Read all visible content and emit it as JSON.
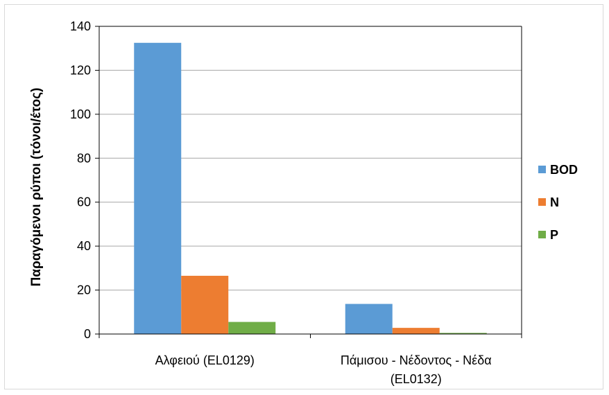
{
  "chart_data": {
    "type": "bar",
    "categories": [
      "Αλφειού (EL0129)",
      "Πάμισου - Νέδοντος - Νέδα (EL0132)"
    ],
    "category_lines": [
      [
        "Αλφειού (EL0129)"
      ],
      [
        "Πάμισου - Νέδοντος - Νέδα",
        "(EL0132)"
      ]
    ],
    "series": [
      {
        "name": "BOD",
        "values": [
          132.5,
          13.7
        ],
        "color": "#5b9bd5"
      },
      {
        "name": "N",
        "values": [
          26.5,
          2.8
        ],
        "color": "#ed7d31"
      },
      {
        "name": "P",
        "values": [
          5.5,
          0.5
        ],
        "color": "#70ad47"
      }
    ],
    "ylabel": "Παραγόμενοι ρύποι (τόνοι/έτος)",
    "xlabel": "",
    "ylim": [
      0,
      140
    ],
    "yticks": [
      0,
      20,
      40,
      60,
      80,
      100,
      120,
      140
    ],
    "grid": true,
    "legend": "right"
  }
}
